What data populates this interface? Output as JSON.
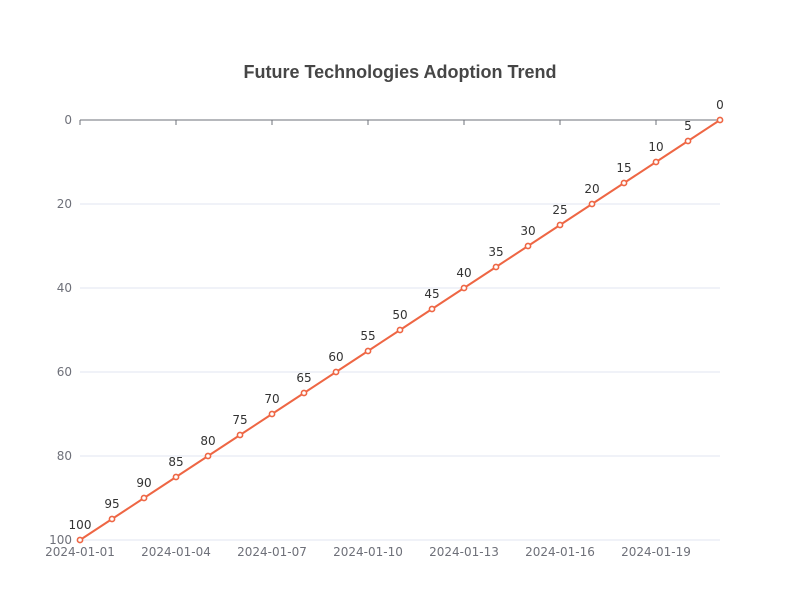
{
  "chart_data": {
    "type": "line",
    "title": "Future Technologies Adoption Trend",
    "xlabel": "",
    "ylabel": "",
    "x": [
      "2024-01-01",
      "2024-01-02",
      "2024-01-03",
      "2024-01-04",
      "2024-01-05",
      "2024-01-06",
      "2024-01-07",
      "2024-01-08",
      "2024-01-09",
      "2024-01-10",
      "2024-01-11",
      "2024-01-12",
      "2024-01-13",
      "2024-01-14",
      "2024-01-15",
      "2024-01-16",
      "2024-01-17",
      "2024-01-18",
      "2024-01-19",
      "2024-01-20",
      "2024-01-21"
    ],
    "x_tick_labels": [
      "2024-01-01",
      "2024-01-04",
      "2024-01-07",
      "2024-01-10",
      "2024-01-13",
      "2024-01-16",
      "2024-01-19"
    ],
    "series": [
      {
        "values": [
          100,
          95,
          90,
          85,
          80,
          75,
          70,
          65,
          60,
          55,
          50,
          45,
          40,
          35,
          30,
          25,
          20,
          15,
          10,
          5,
          0
        ],
        "color": "#ee6644"
      }
    ],
    "ylim": [
      0,
      100
    ],
    "y_ticks": [
      0,
      20,
      40,
      60,
      80,
      100
    ],
    "y_inverted": true,
    "x_axis_position": "top",
    "grid": true,
    "data_labels": true
  }
}
